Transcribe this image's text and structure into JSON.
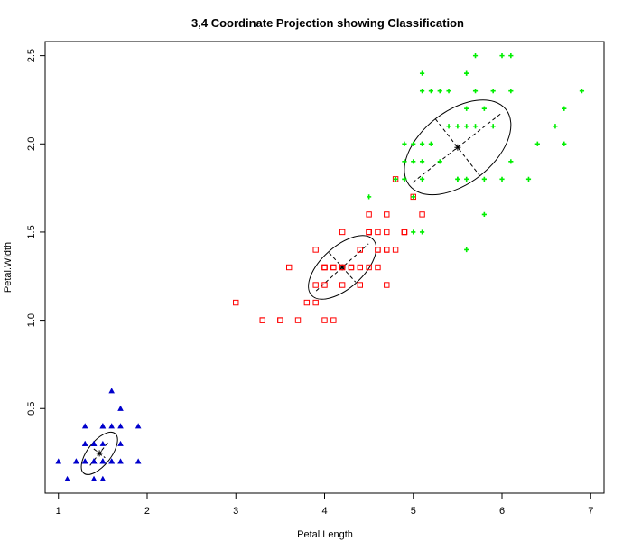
{
  "chart_data": {
    "type": "scatter",
    "title": "3,4 Coordinate Projection showing Classification",
    "xlabel": "Petal.Length",
    "ylabel": "Petal.Width",
    "xlim": [
      0.85,
      7.15
    ],
    "ylim": [
      0.02,
      2.58
    ],
    "x_ticks": [
      "1",
      "2",
      "3",
      "4",
      "5",
      "6",
      "7"
    ],
    "y_ticks": [
      "0.5",
      "1.0",
      "1.5",
      "2.0",
      "2.5"
    ],
    "grid": false,
    "legend": "none",
    "series": [
      {
        "marker": "triangle",
        "color": "#0000cc",
        "points": [
          [
            1.4,
            0.2
          ],
          [
            1.4,
            0.2
          ],
          [
            1.3,
            0.2
          ],
          [
            1.5,
            0.2
          ],
          [
            1.4,
            0.2
          ],
          [
            1.7,
            0.4
          ],
          [
            1.4,
            0.3
          ],
          [
            1.5,
            0.2
          ],
          [
            1.4,
            0.2
          ],
          [
            1.5,
            0.1
          ],
          [
            1.5,
            0.2
          ],
          [
            1.6,
            0.2
          ],
          [
            1.4,
            0.1
          ],
          [
            1.1,
            0.1
          ],
          [
            1.2,
            0.2
          ],
          [
            1.5,
            0.4
          ],
          [
            1.3,
            0.4
          ],
          [
            1.4,
            0.3
          ],
          [
            1.7,
            0.3
          ],
          [
            1.5,
            0.3
          ],
          [
            1.7,
            0.2
          ],
          [
            1.5,
            0.4
          ],
          [
            1.0,
            0.2
          ],
          [
            1.7,
            0.5
          ],
          [
            1.9,
            0.2
          ],
          [
            1.6,
            0.2
          ],
          [
            1.6,
            0.4
          ],
          [
            1.5,
            0.2
          ],
          [
            1.4,
            0.2
          ],
          [
            1.6,
            0.2
          ],
          [
            1.6,
            0.2
          ],
          [
            1.5,
            0.4
          ],
          [
            1.5,
            0.1
          ],
          [
            1.4,
            0.2
          ],
          [
            1.5,
            0.2
          ],
          [
            1.2,
            0.2
          ],
          [
            1.3,
            0.2
          ],
          [
            1.4,
            0.1
          ],
          [
            1.3,
            0.2
          ],
          [
            1.5,
            0.2
          ],
          [
            1.3,
            0.3
          ],
          [
            1.3,
            0.3
          ],
          [
            1.3,
            0.2
          ],
          [
            1.6,
            0.6
          ],
          [
            1.9,
            0.4
          ],
          [
            1.4,
            0.3
          ],
          [
            1.6,
            0.2
          ],
          [
            1.4,
            0.2
          ],
          [
            1.5,
            0.2
          ],
          [
            1.4,
            0.2
          ]
        ]
      },
      {
        "marker": "square",
        "color": "#ff0000",
        "points": [
          [
            4.7,
            1.4
          ],
          [
            4.5,
            1.5
          ],
          [
            4.9,
            1.5
          ],
          [
            4.0,
            1.3
          ],
          [
            4.6,
            1.5
          ],
          [
            4.5,
            1.3
          ],
          [
            4.7,
            1.6
          ],
          [
            3.3,
            1.0
          ],
          [
            4.6,
            1.3
          ],
          [
            3.9,
            1.4
          ],
          [
            3.5,
            1.0
          ],
          [
            4.2,
            1.5
          ],
          [
            4.0,
            1.0
          ],
          [
            4.7,
            1.4
          ],
          [
            3.6,
            1.3
          ],
          [
            4.4,
            1.4
          ],
          [
            4.5,
            1.5
          ],
          [
            4.1,
            1.0
          ],
          [
            4.5,
            1.5
          ],
          [
            3.9,
            1.1
          ],
          [
            4.8,
            1.8
          ],
          [
            4.0,
            1.3
          ],
          [
            4.9,
            1.5
          ],
          [
            4.7,
            1.2
          ],
          [
            4.3,
            1.3
          ],
          [
            4.4,
            1.4
          ],
          [
            4.8,
            1.4
          ],
          [
            5.0,
            1.7
          ],
          [
            4.5,
            1.5
          ],
          [
            3.5,
            1.0
          ],
          [
            3.8,
            1.1
          ],
          [
            3.7,
            1.0
          ],
          [
            3.9,
            1.2
          ],
          [
            5.1,
            1.6
          ],
          [
            4.5,
            1.5
          ],
          [
            4.5,
            1.6
          ],
          [
            4.7,
            1.5
          ],
          [
            4.4,
            1.3
          ],
          [
            4.1,
            1.3
          ],
          [
            4.0,
            1.3
          ],
          [
            4.4,
            1.2
          ],
          [
            4.6,
            1.4
          ],
          [
            4.0,
            1.2
          ],
          [
            3.3,
            1.0
          ],
          [
            4.2,
            1.3
          ],
          [
            4.2,
            1.2
          ],
          [
            4.2,
            1.3
          ],
          [
            4.3,
            1.3
          ],
          [
            3.0,
            1.1
          ],
          [
            4.1,
            1.3
          ],
          [
            4.9,
            1.5
          ],
          [
            4.6,
            1.4
          ]
        ]
      },
      {
        "marker": "cross",
        "color": "#00ee00",
        "points": [
          [
            6.0,
            2.5
          ],
          [
            5.1,
            1.9
          ],
          [
            5.9,
            2.1
          ],
          [
            5.6,
            1.8
          ],
          [
            5.8,
            2.2
          ],
          [
            6.6,
            2.1
          ],
          [
            4.5,
            1.7
          ],
          [
            6.3,
            1.8
          ],
          [
            5.8,
            1.8
          ],
          [
            6.1,
            2.5
          ],
          [
            5.1,
            2.0
          ],
          [
            5.3,
            1.9
          ],
          [
            5.5,
            2.1
          ],
          [
            5.0,
            2.0
          ],
          [
            5.1,
            2.4
          ],
          [
            5.3,
            2.3
          ],
          [
            5.5,
            1.8
          ],
          [
            6.7,
            2.2
          ],
          [
            6.9,
            2.3
          ],
          [
            5.0,
            1.5
          ],
          [
            5.7,
            2.3
          ],
          [
            4.9,
            2.0
          ],
          [
            6.7,
            2.0
          ],
          [
            4.9,
            1.8
          ],
          [
            5.7,
            2.1
          ],
          [
            6.0,
            1.8
          ],
          [
            4.8,
            1.8
          ],
          [
            4.9,
            1.8
          ],
          [
            5.6,
            2.1
          ],
          [
            5.8,
            1.6
          ],
          [
            6.1,
            1.9
          ],
          [
            6.4,
            2.0
          ],
          [
            5.6,
            2.2
          ],
          [
            5.1,
            1.5
          ],
          [
            5.6,
            1.4
          ],
          [
            6.1,
            2.3
          ],
          [
            5.6,
            2.4
          ],
          [
            5.5,
            1.8
          ],
          [
            4.8,
            1.8
          ],
          [
            5.4,
            2.1
          ],
          [
            5.6,
            2.4
          ],
          [
            5.1,
            2.3
          ],
          [
            5.9,
            2.3
          ],
          [
            5.7,
            2.5
          ],
          [
            5.2,
            2.3
          ],
          [
            5.0,
            1.9
          ],
          [
            5.2,
            2.0
          ],
          [
            5.4,
            2.3
          ],
          [
            5.1,
            1.8
          ],
          [
            5.0,
            1.7
          ],
          [
            4.9,
            1.9
          ]
        ]
      }
    ],
    "ellipses": [
      {
        "center": [
          1.462,
          0.246
        ],
        "color": "#000000"
      },
      {
        "center": [
          4.2,
          1.3
        ],
        "color": "#000000"
      },
      {
        "center": [
          5.5,
          1.98
        ],
        "color": "#000000"
      }
    ]
  }
}
